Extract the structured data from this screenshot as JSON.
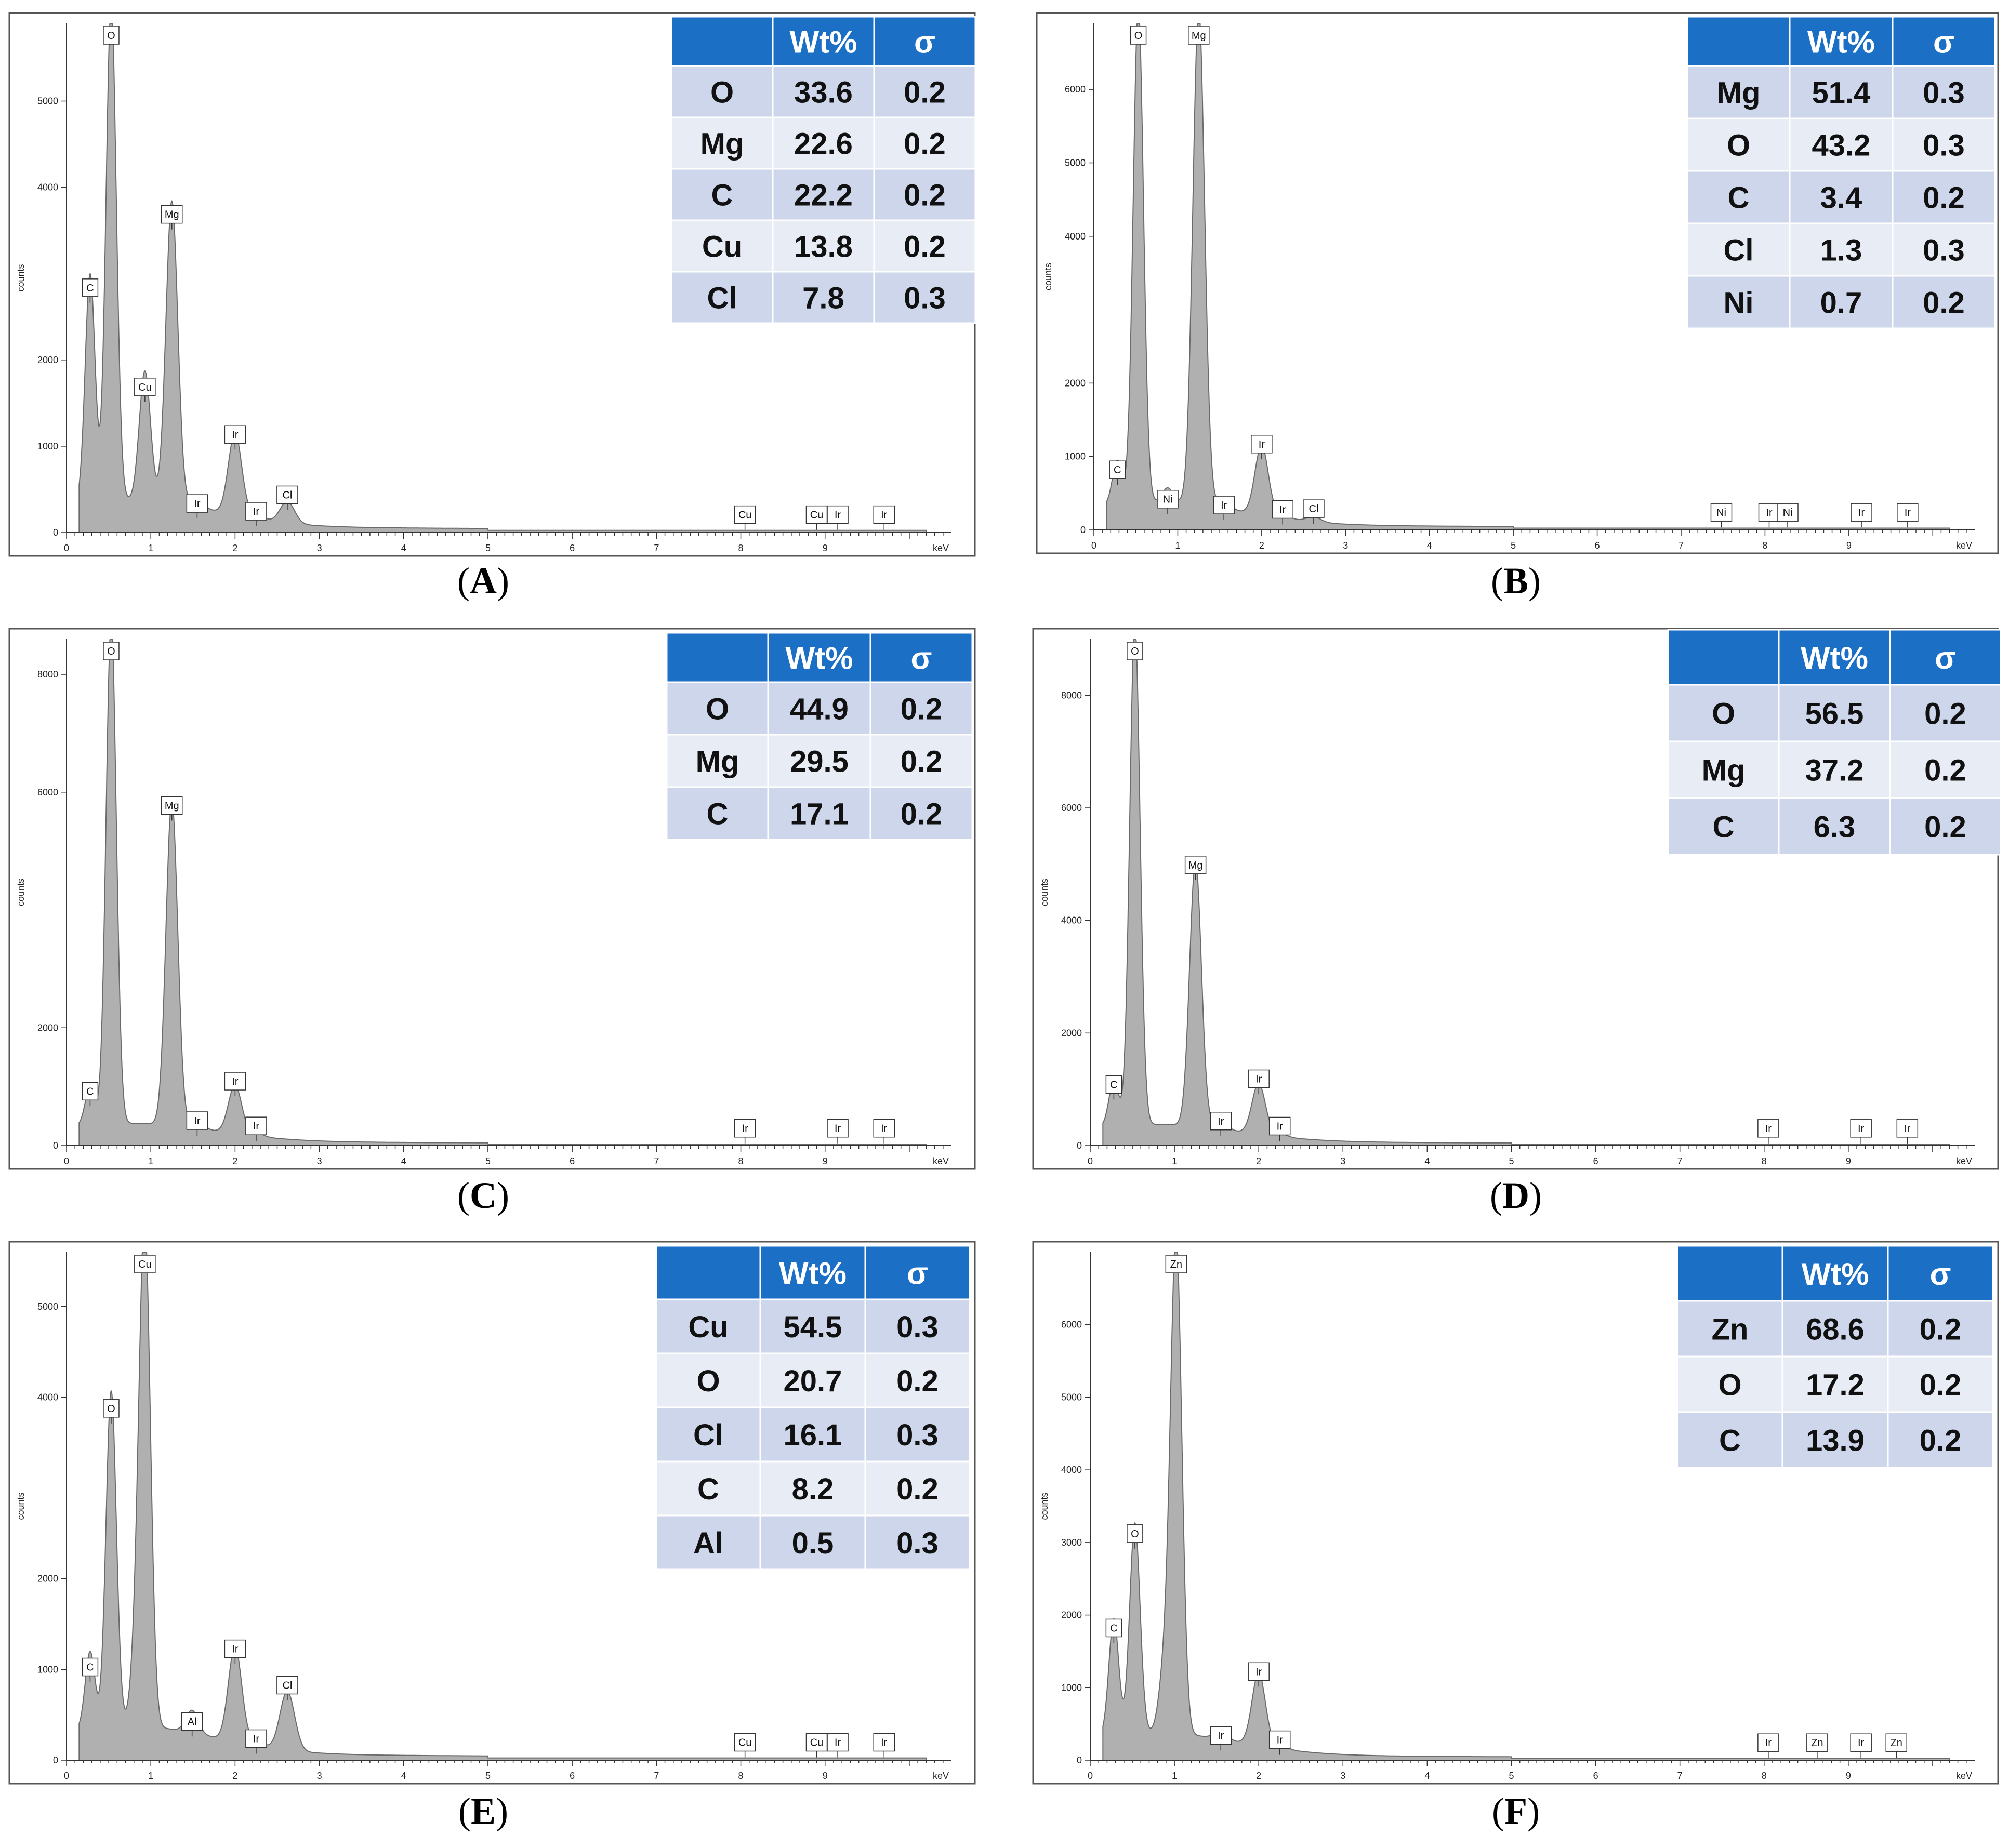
{
  "figure": {
    "panels": [
      {
        "label": "A",
        "table": {
          "headers": [
            "",
            "Wt%",
            "σ"
          ],
          "rows": [
            [
              "O",
              "33.6",
              "0.2"
            ],
            [
              "Mg",
              "22.6",
              "0.2"
            ],
            [
              "C",
              "22.2",
              "0.2"
            ],
            [
              "Cu",
              "13.8",
              "0.2"
            ],
            [
              "Cl",
              "7.8",
              "0.3"
            ]
          ]
        }
      },
      {
        "label": "B",
        "table": {
          "headers": [
            "",
            "Wt%",
            "σ"
          ],
          "rows": [
            [
              "Mg",
              "51.4",
              "0.3"
            ],
            [
              "O",
              "43.2",
              "0.3"
            ],
            [
              "C",
              "3.4",
              "0.2"
            ],
            [
              "Cl",
              "1.3",
              "0.3"
            ],
            [
              "Ni",
              "0.7",
              "0.2"
            ]
          ]
        }
      },
      {
        "label": "C",
        "table": {
          "headers": [
            "",
            "Wt%",
            "σ"
          ],
          "rows": [
            [
              "O",
              "44.9",
              "0.2"
            ],
            [
              "Mg",
              "29.5",
              "0.2"
            ],
            [
              "C",
              "17.1",
              "0.2"
            ]
          ]
        }
      },
      {
        "label": "D",
        "table": {
          "headers": [
            "",
            "Wt%",
            "σ"
          ],
          "rows": [
            [
              "O",
              "56.5",
              "0.2"
            ],
            [
              "Mg",
              "37.2",
              "0.2"
            ],
            [
              "C",
              "6.3",
              "0.2"
            ]
          ]
        }
      },
      {
        "label": "E",
        "table": {
          "headers": [
            "",
            "Wt%",
            "σ"
          ],
          "rows": [
            [
              "Cu",
              "54.5",
              "0.3"
            ],
            [
              "O",
              "20.7",
              "0.2"
            ],
            [
              "Cl",
              "16.1",
              "0.3"
            ],
            [
              "C",
              "8.2",
              "0.2"
            ],
            [
              "Al",
              "0.5",
              "0.3"
            ]
          ]
        }
      },
      {
        "label": "F",
        "table": {
          "headers": [
            "",
            "Wt%",
            "σ"
          ],
          "rows": [
            [
              "Zn",
              "68.6",
              "0.2"
            ],
            [
              "O",
              "17.2",
              "0.2"
            ],
            [
              "C",
              "13.9",
              "0.2"
            ]
          ]
        }
      }
    ]
  },
  "chart_data": [
    {
      "type": "area",
      "title": "(A)",
      "xlabel": "keV",
      "ylabel": "counts",
      "xlim": [
        0,
        10.5
      ],
      "ylim": [
        0,
        5900
      ],
      "xticks": [
        0,
        1,
        2,
        3,
        4,
        5,
        6,
        7,
        8,
        9
      ],
      "yticks": [
        0,
        1000,
        2000,
        4000,
        5000
      ],
      "series": [
        {
          "name": "spectrum",
          "peaks": [
            [
              0.28,
              2650
            ],
            [
              0.53,
              5750
            ],
            [
              0.93,
              1500
            ],
            [
              1.25,
              3500
            ],
            [
              1.55,
              100
            ],
            [
              2.0,
              950
            ],
            [
              2.25,
              60
            ],
            [
              2.62,
              250
            ]
          ]
        }
      ],
      "annotations": [
        {
          "text": "C",
          "x": 0.28,
          "y": 2650
        },
        {
          "text": "O",
          "x": 0.53,
          "y": 5750
        },
        {
          "text": "Cu",
          "x": 0.93,
          "y": 1500
        },
        {
          "text": "Mg",
          "x": 1.25,
          "y": 3500
        },
        {
          "text": "Ir",
          "x": 1.55,
          "y": 150
        },
        {
          "text": "Ir",
          "x": 2.0,
          "y": 950
        },
        {
          "text": "Ir",
          "x": 2.25,
          "y": 60
        },
        {
          "text": "Cl",
          "x": 2.62,
          "y": 250
        },
        {
          "text": "Cu",
          "x": 8.05,
          "y": 20
        },
        {
          "text": "Cu",
          "x": 8.9,
          "y": 20
        },
        {
          "text": "Ir",
          "x": 9.15,
          "y": 20
        },
        {
          "text": "Ir",
          "x": 9.7,
          "y": 20
        }
      ]
    },
    {
      "type": "area",
      "title": "(B)",
      "xlabel": "keV",
      "ylabel": "counts",
      "xlim": [
        0,
        10.5
      ],
      "ylim": [
        0,
        6900
      ],
      "xticks": [
        0,
        1,
        2,
        3,
        4,
        5,
        6,
        7,
        8,
        9
      ],
      "yticks": [
        0,
        1000,
        2000,
        4000,
        5000,
        6000
      ],
      "series": [
        {
          "name": "spectrum",
          "peaks": [
            [
              0.28,
              600
            ],
            [
              0.53,
              6750
            ],
            [
              0.88,
              200
            ],
            [
              1.25,
              6750
            ],
            [
              1.55,
              120
            ],
            [
              2.0,
              950
            ],
            [
              2.25,
              60
            ],
            [
              2.62,
              70
            ]
          ]
        }
      ],
      "annotations": [
        {
          "text": "C",
          "x": 0.28,
          "y": 600
        },
        {
          "text": "O",
          "x": 0.53,
          "y": 6750
        },
        {
          "text": "Ni",
          "x": 0.88,
          "y": 200
        },
        {
          "text": "Mg",
          "x": 1.25,
          "y": 6750
        },
        {
          "text": "Ir",
          "x": 1.55,
          "y": 120
        },
        {
          "text": "Ir",
          "x": 2.0,
          "y": 950
        },
        {
          "text": "Ir",
          "x": 2.25,
          "y": 60
        },
        {
          "text": "Cl",
          "x": 2.62,
          "y": 70
        },
        {
          "text": "Ni",
          "x": 7.48,
          "y": 20
        },
        {
          "text": "Ir",
          "x": 8.05,
          "y": 20
        },
        {
          "text": "Ni",
          "x": 8.27,
          "y": 20
        },
        {
          "text": "Ir",
          "x": 9.15,
          "y": 20
        },
        {
          "text": "Ir",
          "x": 9.7,
          "y": 20
        }
      ]
    },
    {
      "type": "area",
      "title": "(C)",
      "xlabel": "keV",
      "ylabel": "counts",
      "xlim": [
        0,
        10.5
      ],
      "ylim": [
        0,
        8600
      ],
      "xticks": [
        0,
        1,
        2,
        3,
        4,
        5,
        6,
        7,
        8,
        9
      ],
      "yticks": [
        0,
        2000,
        6000,
        8000
      ],
      "series": [
        {
          "name": "spectrum",
          "peaks": [
            [
              0.28,
              650
            ],
            [
              0.53,
              8500
            ],
            [
              1.25,
              5500
            ],
            [
              1.55,
              150
            ],
            [
              2.0,
              820
            ],
            [
              2.25,
              60
            ]
          ]
        }
      ],
      "annotations": [
        {
          "text": "C",
          "x": 0.28,
          "y": 650
        },
        {
          "text": "O",
          "x": 0.53,
          "y": 8500
        },
        {
          "text": "Mg",
          "x": 1.25,
          "y": 5500
        },
        {
          "text": "Ir",
          "x": 1.55,
          "y": 150
        },
        {
          "text": "Ir",
          "x": 2.0,
          "y": 820
        },
        {
          "text": "Ir",
          "x": 2.25,
          "y": 60
        },
        {
          "text": "Ir",
          "x": 8.05,
          "y": 20
        },
        {
          "text": "Ir",
          "x": 9.15,
          "y": 20
        },
        {
          "text": "Ir",
          "x": 9.7,
          "y": 20
        }
      ]
    },
    {
      "type": "area",
      "title": "(D)",
      "xlabel": "keV",
      "ylabel": "counts",
      "xlim": [
        0,
        10.5
      ],
      "ylim": [
        0,
        9000
      ],
      "xticks": [
        0,
        1,
        2,
        3,
        4,
        5,
        6,
        7,
        8,
        9
      ],
      "yticks": [
        0,
        2000,
        4000,
        6000,
        8000
      ],
      "series": [
        {
          "name": "spectrum",
          "peaks": [
            [
              0.28,
              800
            ],
            [
              0.53,
              8900
            ],
            [
              1.25,
              4700
            ],
            [
              1.55,
              150
            ],
            [
              2.0,
              900
            ],
            [
              2.25,
              60
            ]
          ]
        }
      ],
      "annotations": [
        {
          "text": "C",
          "x": 0.28,
          "y": 800
        },
        {
          "text": "O",
          "x": 0.53,
          "y": 8900
        },
        {
          "text": "Mg",
          "x": 1.25,
          "y": 4700
        },
        {
          "text": "Ir",
          "x": 1.55,
          "y": 150
        },
        {
          "text": "Ir",
          "x": 2.0,
          "y": 900
        },
        {
          "text": "Ir",
          "x": 2.25,
          "y": 60
        },
        {
          "text": "Ir",
          "x": 8.05,
          "y": 20
        },
        {
          "text": "Ir",
          "x": 9.15,
          "y": 20
        },
        {
          "text": "Ir",
          "x": 9.7,
          "y": 20
        }
      ]
    },
    {
      "type": "area",
      "title": "(E)",
      "xlabel": "keV",
      "ylabel": "counts",
      "xlim": [
        0,
        10.5
      ],
      "ylim": [
        0,
        5600
      ],
      "xticks": [
        0,
        1,
        2,
        3,
        4,
        5,
        6,
        7,
        8,
        9
      ],
      "yticks": [
        0,
        1000,
        2000,
        4000,
        5000
      ],
      "series": [
        {
          "name": "spectrum",
          "peaks": [
            [
              0.28,
              850
            ],
            [
              0.53,
              3700
            ],
            [
              0.83,
              700
            ],
            [
              0.93,
              5400
            ],
            [
              1.49,
              250
            ],
            [
              2.0,
              1050
            ],
            [
              2.25,
              60
            ],
            [
              2.62,
              650
            ]
          ]
        }
      ],
      "annotations": [
        {
          "text": "C",
          "x": 0.28,
          "y": 850
        },
        {
          "text": "O",
          "x": 0.53,
          "y": 3700
        },
        {
          "text": "Cu",
          "x": 0.93,
          "y": 5400
        },
        {
          "text": "Al",
          "x": 1.49,
          "y": 250
        },
        {
          "text": "Ir",
          "x": 2.0,
          "y": 1050
        },
        {
          "text": "Ir",
          "x": 2.25,
          "y": 60
        },
        {
          "text": "Cl",
          "x": 2.62,
          "y": 650
        },
        {
          "text": "Cu",
          "x": 8.05,
          "y": 20
        },
        {
          "text": "Cu",
          "x": 8.9,
          "y": 20
        },
        {
          "text": "Ir",
          "x": 9.15,
          "y": 20
        },
        {
          "text": "Ir",
          "x": 9.7,
          "y": 20
        }
      ]
    },
    {
      "type": "area",
      "title": "(F)",
      "xlabel": "keV",
      "ylabel": "counts",
      "xlim": [
        0,
        10.5
      ],
      "ylim": [
        0,
        7000
      ],
      "xticks": [
        0,
        1,
        2,
        3,
        4,
        5,
        6,
        7,
        8,
        9
      ],
      "yticks": [
        0,
        1000,
        2000,
        3000,
        4000,
        5000,
        6000
      ],
      "series": [
        {
          "name": "spectrum",
          "peaks": [
            [
              0.28,
              1600
            ],
            [
              0.53,
              2900
            ],
            [
              0.88,
              800
            ],
            [
              1.02,
              6800
            ],
            [
              1.55,
              120
            ],
            [
              2.0,
              1000
            ],
            [
              2.25,
              60
            ]
          ]
        }
      ],
      "annotations": [
        {
          "text": "C",
          "x": 0.28,
          "y": 1600
        },
        {
          "text": "O",
          "x": 0.53,
          "y": 2900
        },
        {
          "text": "Zn",
          "x": 1.02,
          "y": 6800
        },
        {
          "text": "Ir",
          "x": 1.55,
          "y": 120
        },
        {
          "text": "Ir",
          "x": 2.0,
          "y": 1000
        },
        {
          "text": "Ir",
          "x": 2.25,
          "y": 60
        },
        {
          "text": "Ir",
          "x": 8.05,
          "y": 20
        },
        {
          "text": "Zn",
          "x": 8.63,
          "y": 20
        },
        {
          "text": "Ir",
          "x": 9.15,
          "y": 20
        },
        {
          "text": "Zn",
          "x": 9.57,
          "y": 20
        }
      ]
    }
  ],
  "colors": {
    "header_bg": "#1b6fc4",
    "row_odd": "#cdd6ea",
    "row_even": "#e8ecf5",
    "spectrum_fill": "#b0b0b0",
    "frame": "#555555"
  }
}
